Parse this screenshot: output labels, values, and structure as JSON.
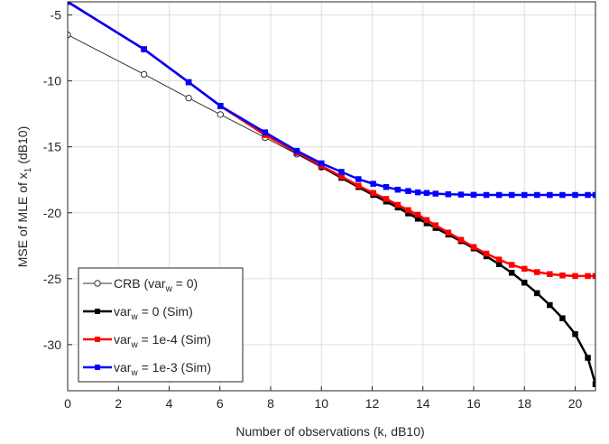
{
  "chart_data": {
    "type": "line",
    "title": "",
    "xlabel": "Number of observations (k, dB10)",
    "ylabel": "MSE of MLE of x",
    "ylabel_sub": "1",
    "ylabel_suffix": " (dB10)",
    "xlim": [
      0,
      20.8
    ],
    "ylim": [
      -33.5,
      -4
    ],
    "xticks": [
      0,
      2,
      4,
      6,
      8,
      10,
      12,
      14,
      16,
      18,
      20
    ],
    "yticks": [
      -5,
      -10,
      -15,
      -20,
      -25,
      -30
    ],
    "grid": true,
    "legend_position": "bottom-left",
    "series": [
      {
        "name": "CRB",
        "label_parts": [
          "CRB (var",
          "w",
          " = 0)"
        ],
        "color": "#333333",
        "marker": "open-circle",
        "linewidth": 1,
        "x": [
          0,
          3.01,
          4.77,
          6.02,
          7.78,
          9.03,
          10.0,
          10.79,
          11.46,
          12.04,
          12.55,
          13.01,
          13.42,
          13.8,
          14.15
        ],
        "y": [
          -6.5,
          -9.5,
          -11.3,
          -12.55,
          -14.3,
          -15.55,
          -16.55,
          -17.3,
          -18.0,
          -18.55,
          -19.05,
          -19.5,
          -19.95,
          -20.3,
          -20.65
        ]
      },
      {
        "name": "var_w = 0 (Sim)",
        "label_parts": [
          "var",
          "w",
          " = 0 (Sim)"
        ],
        "color": "#000000",
        "marker": "filled-square",
        "linewidth": 2.5,
        "x": [
          0,
          3.01,
          4.77,
          6.02,
          7.78,
          9.03,
          10.0,
          10.79,
          11.46,
          12.04,
          12.55,
          13.01,
          13.42,
          13.8,
          14.15,
          14.5,
          15.0,
          15.5,
          16.0,
          16.5,
          17.0,
          17.5,
          18.0,
          18.5,
          19.0,
          19.5,
          20.0,
          20.5,
          20.8
        ],
        "y": [
          -4,
          -7.6,
          -10.1,
          -11.9,
          -14.05,
          -15.45,
          -16.5,
          -17.35,
          -18.05,
          -18.65,
          -19.15,
          -19.6,
          -20.05,
          -20.45,
          -20.8,
          -21.15,
          -21.65,
          -22.15,
          -22.7,
          -23.3,
          -23.9,
          -24.55,
          -25.3,
          -26.1,
          -27.0,
          -28.0,
          -29.2,
          -31.0,
          -33.0
        ]
      },
      {
        "name": "var_w = 1e-4 (Sim)",
        "label_parts": [
          "var",
          "w",
          " = 1e-4 (Sim)"
        ],
        "color": "#ff0000",
        "marker": "filled-square",
        "linewidth": 2.5,
        "x": [
          0,
          3.01,
          4.77,
          6.02,
          7.78,
          9.03,
          10.0,
          10.79,
          11.46,
          12.04,
          12.55,
          13.01,
          13.42,
          13.8,
          14.15,
          14.5,
          15.0,
          15.5,
          16.0,
          16.5,
          17.0,
          17.5,
          18.0,
          18.5,
          19.0,
          19.5,
          20.0,
          20.5,
          20.8
        ],
        "y": [
          -4,
          -7.6,
          -10.1,
          -11.9,
          -14.1,
          -15.4,
          -16.45,
          -17.25,
          -17.95,
          -18.5,
          -18.95,
          -19.4,
          -19.8,
          -20.15,
          -20.55,
          -20.95,
          -21.5,
          -22.05,
          -22.6,
          -23.1,
          -23.55,
          -23.95,
          -24.25,
          -24.5,
          -24.65,
          -24.75,
          -24.8,
          -24.8,
          -24.8
        ]
      },
      {
        "name": "var_w = 1e-3 (Sim)",
        "label_parts": [
          "var",
          "w",
          " = 1e-3 (Sim)"
        ],
        "color": "#0000ff",
        "marker": "filled-square",
        "linewidth": 2.5,
        "x": [
          0,
          3.01,
          4.77,
          6.02,
          7.78,
          9.03,
          10.0,
          10.79,
          11.46,
          12.04,
          12.55,
          13.01,
          13.42,
          13.8,
          14.15,
          14.5,
          15.0,
          15.5,
          16.0,
          16.5,
          17.0,
          17.5,
          18.0,
          18.5,
          19.0,
          19.5,
          20.0,
          20.5,
          20.8
        ],
        "y": [
          -4,
          -7.6,
          -10.1,
          -11.9,
          -13.9,
          -15.3,
          -16.25,
          -16.9,
          -17.45,
          -17.8,
          -18.05,
          -18.25,
          -18.35,
          -18.45,
          -18.5,
          -18.55,
          -18.6,
          -18.62,
          -18.64,
          -18.65,
          -18.65,
          -18.65,
          -18.65,
          -18.65,
          -18.65,
          -18.65,
          -18.65,
          -18.65,
          -18.65
        ]
      }
    ]
  }
}
